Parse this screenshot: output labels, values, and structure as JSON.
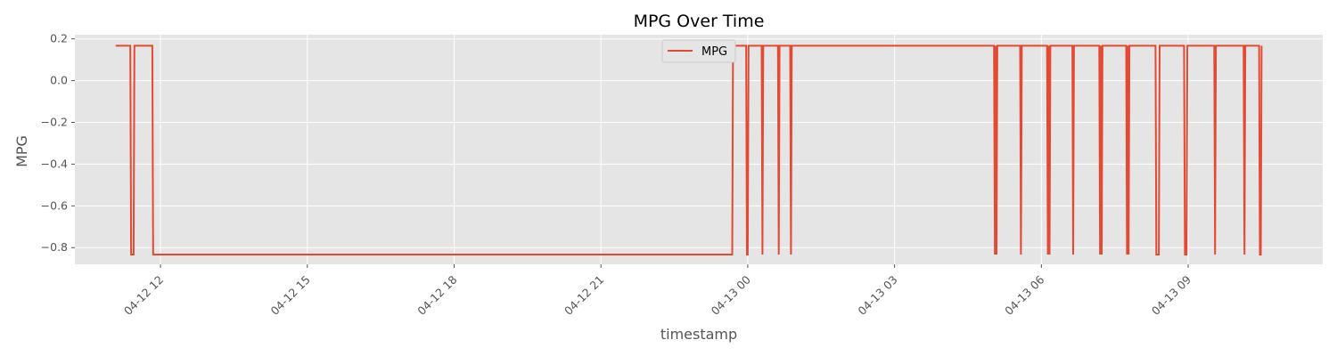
{
  "chart_data": {
    "type": "line",
    "title": "MPG Over Time",
    "xlabel": "timestamp",
    "ylabel": "MPG",
    "xlim": [
      "2023-04-12T10:15",
      "2023-04-13T11:45"
    ],
    "ylim": [
      -0.88,
      0.22
    ],
    "grid": true,
    "legend_position": "top-center",
    "x_ticks": [
      {
        "t": "2023-04-12T12:00",
        "label": "04-12 12"
      },
      {
        "t": "2023-04-12T15:00",
        "label": "04-12 15"
      },
      {
        "t": "2023-04-12T18:00",
        "label": "04-12 18"
      },
      {
        "t": "2023-04-12T21:00",
        "label": "04-12 21"
      },
      {
        "t": "2023-04-13T00:00",
        "label": "04-13 00"
      },
      {
        "t": "2023-04-13T03:00",
        "label": "04-13 03"
      },
      {
        "t": "2023-04-13T06:00",
        "label": "04-13 06"
      },
      {
        "t": "2023-04-13T09:00",
        "label": "04-13 09"
      }
    ],
    "y_ticks": [
      {
        "v": 0.2,
        "label": "0.2"
      },
      {
        "v": 0.0,
        "label": "0.0"
      },
      {
        "v": -0.2,
        "label": "−0.2"
      },
      {
        "v": -0.4,
        "label": "−0.4"
      },
      {
        "v": -0.6,
        "label": "−0.6"
      },
      {
        "v": -0.8,
        "label": "−0.8"
      }
    ],
    "series": [
      {
        "name": "MPG",
        "color": "#E24A33",
        "high": 0.167,
        "low": -0.833,
        "points": [
          {
            "t": "2023-04-12T11:05",
            "v": 0.167
          },
          {
            "t": "2023-04-12T11:23",
            "v": 0.167
          },
          {
            "t": "2023-04-12T11:24",
            "v": -0.833
          },
          {
            "t": "2023-04-12T11:27",
            "v": -0.833
          },
          {
            "t": "2023-04-12T11:28",
            "v": 0.167
          },
          {
            "t": "2023-04-12T11:50",
            "v": 0.167
          },
          {
            "t": "2023-04-12T11:51",
            "v": -0.833
          },
          {
            "t": "2023-04-12T23:41",
            "v": -0.833
          },
          {
            "t": "2023-04-12T23:42",
            "v": 0.167
          },
          {
            "t": "2023-04-12T23:58",
            "v": 0.167
          },
          {
            "t": "2023-04-12T23:59",
            "v": -0.833
          },
          {
            "t": "2023-04-13T00:00",
            "v": -0.833
          },
          {
            "t": "2023-04-13T00:01",
            "v": 0.167
          },
          {
            "t": "2023-04-13T00:17",
            "v": 0.167
          },
          {
            "t": "2023-04-13T00:18",
            "v": -0.833
          },
          {
            "t": "2023-04-13T00:19",
            "v": 0.167
          },
          {
            "t": "2023-04-13T00:37",
            "v": 0.167
          },
          {
            "t": "2023-04-13T00:38",
            "v": -0.833
          },
          {
            "t": "2023-04-13T00:39",
            "v": 0.167
          },
          {
            "t": "2023-04-13T00:52",
            "v": 0.167
          },
          {
            "t": "2023-04-13T00:53",
            "v": -0.833
          },
          {
            "t": "2023-04-13T00:54",
            "v": 0.167
          },
          {
            "t": "2023-04-13T05:02",
            "v": 0.167
          },
          {
            "t": "2023-04-13T05:03",
            "v": -0.833
          },
          {
            "t": "2023-04-13T05:04",
            "v": 0.167
          },
          {
            "t": "2023-04-13T05:05",
            "v": -0.833
          },
          {
            "t": "2023-04-13T05:06",
            "v": 0.167
          },
          {
            "t": "2023-04-13T05:34",
            "v": 0.167
          },
          {
            "t": "2023-04-13T05:35",
            "v": -0.833
          },
          {
            "t": "2023-04-13T05:36",
            "v": 0.167
          },
          {
            "t": "2023-04-13T06:07",
            "v": 0.167
          },
          {
            "t": "2023-04-13T06:08",
            "v": -0.833
          },
          {
            "t": "2023-04-13T06:09",
            "v": 0.167
          },
          {
            "t": "2023-04-13T06:10",
            "v": -0.833
          },
          {
            "t": "2023-04-13T06:11",
            "v": 0.167
          },
          {
            "t": "2023-04-13T06:38",
            "v": 0.167
          },
          {
            "t": "2023-04-13T06:39",
            "v": -0.833
          },
          {
            "t": "2023-04-13T06:40",
            "v": 0.167
          },
          {
            "t": "2023-04-13T07:11",
            "v": 0.167
          },
          {
            "t": "2023-04-13T07:12",
            "v": -0.833
          },
          {
            "t": "2023-04-13T07:13",
            "v": 0.167
          },
          {
            "t": "2023-04-13T07:14",
            "v": -0.833
          },
          {
            "t": "2023-04-13T07:15",
            "v": 0.167
          },
          {
            "t": "2023-04-13T07:44",
            "v": 0.167
          },
          {
            "t": "2023-04-13T07:45",
            "v": -0.833
          },
          {
            "t": "2023-04-13T07:46",
            "v": 0.167
          },
          {
            "t": "2023-04-13T07:47",
            "v": -0.833
          },
          {
            "t": "2023-04-13T07:48",
            "v": 0.167
          },
          {
            "t": "2023-04-13T08:20",
            "v": 0.167
          },
          {
            "t": "2023-04-13T08:21",
            "v": -0.833
          },
          {
            "t": "2023-04-13T08:24",
            "v": -0.833
          },
          {
            "t": "2023-04-13T08:25",
            "v": 0.167
          },
          {
            "t": "2023-04-13T08:55",
            "v": 0.167
          },
          {
            "t": "2023-04-13T08:56",
            "v": -0.833
          },
          {
            "t": "2023-04-13T08:58",
            "v": -0.833
          },
          {
            "t": "2023-04-13T08:59",
            "v": 0.167
          },
          {
            "t": "2023-04-13T09:32",
            "v": 0.167
          },
          {
            "t": "2023-04-13T09:33",
            "v": -0.833
          },
          {
            "t": "2023-04-13T09:34",
            "v": 0.167
          },
          {
            "t": "2023-04-13T10:08",
            "v": 0.167
          },
          {
            "t": "2023-04-13T10:09",
            "v": -0.833
          },
          {
            "t": "2023-04-13T10:10",
            "v": 0.167
          },
          {
            "t": "2023-04-13T10:27",
            "v": 0.167
          },
          {
            "t": "2023-04-13T10:28",
            "v": -0.833
          },
          {
            "t": "2023-04-13T10:29",
            "v": -0.833
          },
          {
            "t": "2023-04-13T10:30",
            "v": 0.167
          }
        ]
      }
    ]
  },
  "colors": {
    "plot_background": "#E5E5E5",
    "grid": "#FFFFFF",
    "tick_text": "#555555",
    "series": "#E24A33"
  }
}
